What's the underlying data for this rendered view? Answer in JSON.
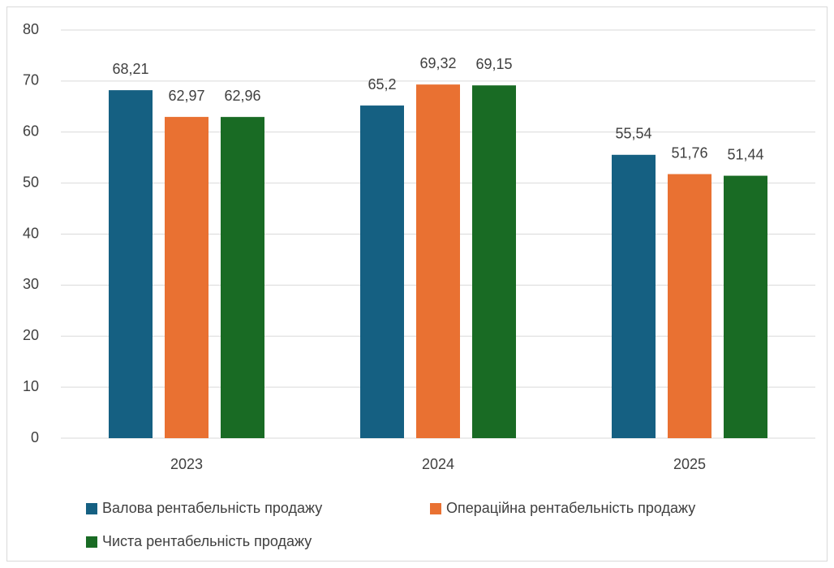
{
  "chart_data": {
    "type": "bar",
    "categories": [
      "2023",
      "2024",
      "2025"
    ],
    "series": [
      {
        "name": "Валова рентабельність продажу",
        "color": "#156082",
        "values": [
          68.21,
          65.2,
          55.54
        ],
        "value_labels": [
          "68,21",
          "65,2",
          "55,54"
        ]
      },
      {
        "name": "Операційна рентабельність продажу",
        "color": "#e97132",
        "values": [
          62.97,
          69.32,
          51.76
        ],
        "value_labels": [
          "62,97",
          "69,32",
          "51,76"
        ]
      },
      {
        "name": "Чиста рентабельність продажу",
        "color": "#196b24",
        "values": [
          62.96,
          69.15,
          51.44
        ],
        "value_labels": [
          "62,96",
          "69,15",
          "51,44"
        ]
      }
    ],
    "ylim": [
      0,
      80
    ],
    "yticks": [
      0,
      10,
      20,
      30,
      40,
      50,
      60,
      70,
      80
    ],
    "grid": true,
    "legend": "bottom"
  }
}
